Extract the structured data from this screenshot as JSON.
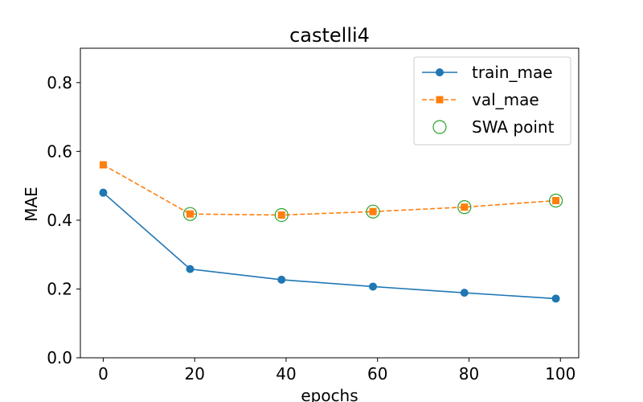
{
  "chart_data": {
    "type": "line",
    "title": "castelli4",
    "xlabel": "epochs",
    "ylabel": "MAE",
    "xlim": [
      -5,
      104
    ],
    "ylim": [
      0.0,
      0.9
    ],
    "xticks": [
      0,
      20,
      40,
      60,
      80,
      100
    ],
    "yticks": [
      0.0,
      0.2,
      0.4,
      0.6,
      0.8
    ],
    "xtick_labels": [
      "0",
      "20",
      "40",
      "60",
      "80",
      "100"
    ],
    "ytick_labels": [
      "0.0",
      "0.2",
      "0.4",
      "0.6",
      "0.8"
    ],
    "grid": false,
    "legend_position": "top-right",
    "series": [
      {
        "name": "train_mae",
        "color": "#1f77b4",
        "marker": "circle",
        "line_style": "solid",
        "x": [
          0,
          19,
          39,
          59,
          79,
          99
        ],
        "values": [
          0.48,
          0.258,
          0.227,
          0.207,
          0.189,
          0.172
        ]
      },
      {
        "name": "val_mae",
        "color": "#ff7f0e",
        "marker": "square",
        "line_style": "dashed",
        "x": [
          0,
          19,
          39,
          59,
          79,
          99
        ],
        "values": [
          0.561,
          0.418,
          0.415,
          0.425,
          0.438,
          0.457
        ]
      },
      {
        "name": "SWA point",
        "color": "#2ca02c",
        "marker": "open-circle",
        "line_style": "none",
        "x": [
          19,
          39,
          59,
          79,
          99
        ],
        "values": [
          0.418,
          0.415,
          0.425,
          0.438,
          0.457
        ]
      }
    ]
  }
}
